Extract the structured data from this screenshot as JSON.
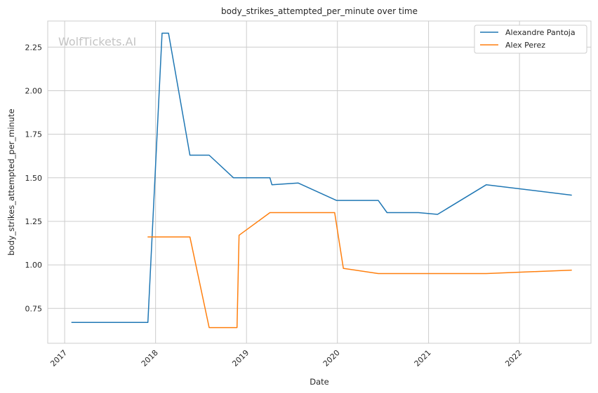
{
  "watermark": "WolfTickets.AI",
  "chart_data": {
    "type": "line",
    "title": "body_strikes_attempted_per_minute over time",
    "xlabel": "Date",
    "ylabel": "body_strikes_attempted_per_minute",
    "x_ticks": [
      "2017",
      "2018",
      "2019",
      "2020",
      "2021",
      "2022"
    ],
    "y_ticks": [
      "0.75",
      "1.00",
      "1.25",
      "1.50",
      "1.75",
      "2.00",
      "2.25"
    ],
    "xlim": [
      "2016-10-25",
      "2022-10-15"
    ],
    "ylim": [
      0.55,
      2.4
    ],
    "grid": true,
    "legend_position": "top-right",
    "series": [
      {
        "name": "Alexandre Pantoja",
        "color": "#1f77b4",
        "points": [
          [
            "2017-01-28",
            0.67
          ],
          [
            "2017-12-01",
            0.67
          ],
          [
            "2018-01-27",
            2.33
          ],
          [
            "2018-02-22",
            2.33
          ],
          [
            "2018-05-19",
            1.63
          ],
          [
            "2018-08-04",
            1.63
          ],
          [
            "2018-11-10",
            1.5
          ],
          [
            "2019-04-05",
            1.5
          ],
          [
            "2019-04-13",
            1.46
          ],
          [
            "2019-07-27",
            1.47
          ],
          [
            "2019-12-28",
            1.37
          ],
          [
            "2020-06-13",
            1.37
          ],
          [
            "2020-07-18",
            1.3
          ],
          [
            "2020-11-21",
            1.3
          ],
          [
            "2021-02-06",
            1.29
          ],
          [
            "2021-08-21",
            1.46
          ],
          [
            "2022-07-30",
            1.4
          ]
        ]
      },
      {
        "name": "Alex Perez",
        "color": "#ff7f0e",
        "points": [
          [
            "2017-11-30",
            1.16
          ],
          [
            "2018-05-19",
            1.16
          ],
          [
            "2018-08-04",
            0.64
          ],
          [
            "2018-11-24",
            0.64
          ],
          [
            "2018-12-02",
            1.17
          ],
          [
            "2019-04-05",
            1.3
          ],
          [
            "2019-12-21",
            1.3
          ],
          [
            "2020-01-25",
            0.98
          ],
          [
            "2020-06-13",
            0.95
          ],
          [
            "2020-11-21",
            0.95
          ],
          [
            "2021-08-21",
            0.95
          ],
          [
            "2022-07-30",
            0.97
          ]
        ]
      }
    ]
  }
}
